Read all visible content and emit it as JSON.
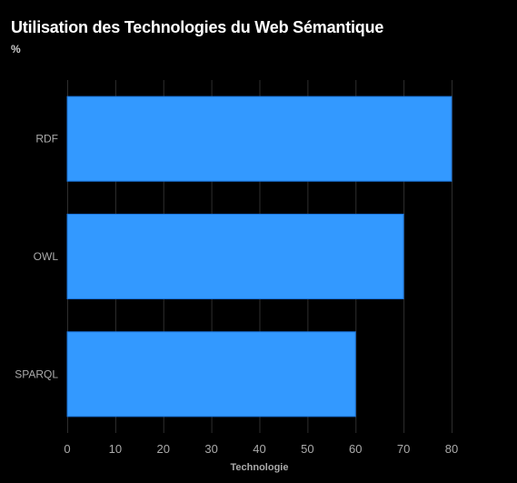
{
  "chart_data": {
    "type": "bar",
    "orientation": "horizontal",
    "title": "Utilisation des Technologies du Web Sémantique",
    "subtitle": "%",
    "xlabel": "Technologie",
    "ylabel": "",
    "categories": [
      "RDF",
      "OWL",
      "SPARQL"
    ],
    "values": [
      80,
      70,
      60
    ],
    "xlim": [
      0,
      80
    ],
    "x_ticks": [
      0,
      10,
      20,
      30,
      40,
      50,
      60,
      70,
      80
    ],
    "grid": true,
    "legend": "none",
    "colors": {
      "bar": "#3399ff",
      "bar_border": "#1a73d9",
      "background": "#000000",
      "grid": "#2e2e2e",
      "text": "#aaaaaa",
      "title": "#ffffff"
    }
  }
}
